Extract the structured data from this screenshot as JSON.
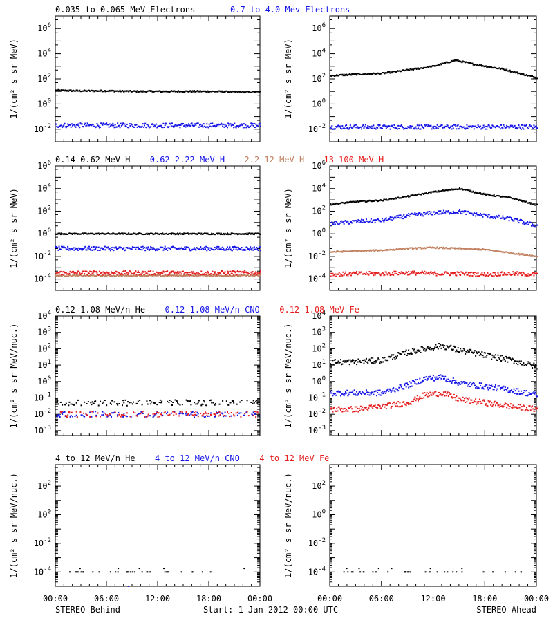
{
  "colors": {
    "black": "#000000",
    "blue": "#1414e6",
    "tan": "#c08060",
    "red": "#e41e1e"
  },
  "rows": [
    {
      "titles": [
        {
          "text": "0.035 to 0.065 MeV Electrons",
          "color": "black"
        },
        {
          "text": "0.7 to 4.0 Mev Electrons",
          "color": "blue"
        }
      ],
      "ylabel": "1/(cm² s sr MeV)",
      "yticks": [
        {
          "pos": 6,
          "base": "10",
          "exp": "6"
        },
        {
          "pos": 4,
          "base": "10",
          "exp": "4"
        },
        {
          "pos": 2,
          "base": "10",
          "exp": "2"
        },
        {
          "pos": 0,
          "base": "10",
          "exp": "0"
        },
        {
          "pos": -2,
          "base": "10",
          "exp": "-2"
        }
      ]
    },
    {
      "titles": [
        {
          "text": "0.14-0.62 MeV H",
          "color": "black"
        },
        {
          "text": "0.62-2.22 MeV H",
          "color": "blue"
        },
        {
          "text": "2.2-12 MeV H",
          "color": "tan"
        },
        {
          "text": "13-100 MeV H",
          "color": "red"
        }
      ],
      "ylabel": "1/(cm² s sr MeV)",
      "yticks": [
        {
          "pos": 6,
          "base": "10",
          "exp": "6"
        },
        {
          "pos": 4,
          "base": "10",
          "exp": "4"
        },
        {
          "pos": 2,
          "base": "10",
          "exp": "2"
        },
        {
          "pos": 0,
          "base": "10",
          "exp": "0"
        },
        {
          "pos": -2,
          "base": "10",
          "exp": "-2"
        },
        {
          "pos": -4,
          "base": "10",
          "exp": "-4"
        }
      ]
    },
    {
      "titles": [
        {
          "text": "0.12-1.08 MeV/n He",
          "color": "black"
        },
        {
          "text": "0.12-1.08 MeV/n CNO",
          "color": "blue"
        },
        {
          "text": "0.12-1.08 MeV Fe",
          "color": "red"
        }
      ],
      "ylabel": "1/(cm² s sr MeV/nuc.)",
      "yticks": [
        {
          "pos": 4,
          "base": "10",
          "exp": "4"
        },
        {
          "pos": 3,
          "base": "10",
          "exp": "3"
        },
        {
          "pos": 2,
          "base": "10",
          "exp": "2"
        },
        {
          "pos": 1,
          "base": "10",
          "exp": "1"
        },
        {
          "pos": 0,
          "base": "10",
          "exp": "0"
        },
        {
          "pos": -1,
          "base": "10",
          "exp": "-1"
        },
        {
          "pos": -2,
          "base": "10",
          "exp": "-2"
        },
        {
          "pos": -3,
          "base": "10",
          "exp": "-3"
        }
      ]
    },
    {
      "titles": [
        {
          "text": "4 to 12 MeV/n He",
          "color": "black"
        },
        {
          "text": "4 to 12 MeV/n CNO",
          "color": "blue"
        },
        {
          "text": "4 to 12 MeV Fe",
          "color": "red"
        }
      ],
      "ylabel": "1/(cm² s sr MeV/nuc.)",
      "yticks": [
        {
          "pos": 2,
          "base": "10",
          "exp": "2"
        },
        {
          "pos": 0,
          "base": "10",
          "exp": "0"
        },
        {
          "pos": -2,
          "base": "10",
          "exp": "-2"
        },
        {
          "pos": -4,
          "base": "10",
          "exp": "-4"
        }
      ]
    }
  ],
  "xticks": [
    "00:00",
    "06:00",
    "12:00",
    "18:00",
    "00:00"
  ],
  "footer": {
    "left": "STEREO Behind",
    "center": "Start:  1-Jan-2012 00:00 UTC",
    "right": "STEREO Ahead"
  },
  "chart_data": [
    {
      "type": "scatter",
      "panel": "electrons-behind",
      "ylog": true,
      "x_hours": [
        0,
        24
      ],
      "series": [
        {
          "name": "0.035 to 0.065 MeV Electrons",
          "color": "black",
          "x": [
            0,
            3,
            6,
            9,
            12,
            15,
            18,
            21,
            24
          ],
          "y": [
            12,
            11,
            11,
            10,
            10,
            10,
            10,
            9,
            9
          ]
        },
        {
          "name": "0.7 to 4.0 Mev Electrons",
          "color": "blue",
          "x": [
            0,
            3,
            6,
            9,
            12,
            15,
            18,
            21,
            24
          ],
          "y": [
            0.02,
            0.02,
            0.02,
            0.02,
            0.02,
            0.02,
            0.02,
            0.02,
            0.02
          ]
        }
      ]
    },
    {
      "type": "scatter",
      "panel": "electrons-ahead",
      "ylog": true,
      "x_hours": [
        0,
        24
      ],
      "series": [
        {
          "name": "0.035 to 0.065 MeV Electrons",
          "color": "black",
          "x": [
            0,
            3,
            6,
            9,
            12,
            14.5,
            17,
            20,
            24
          ],
          "y": [
            180,
            230,
            270,
            500,
            1000,
            3000,
            1300,
            600,
            120
          ]
        },
        {
          "name": "0.7 to 4.0 Mev Electrons",
          "color": "blue",
          "x": [
            0,
            3,
            6,
            9,
            12,
            15,
            18,
            21,
            24
          ],
          "y": [
            0.015,
            0.015,
            0.015,
            0.015,
            0.015,
            0.015,
            0.015,
            0.015,
            0.015
          ]
        }
      ]
    },
    {
      "type": "scatter",
      "panel": "protons-behind",
      "ylog": true,
      "x_hours": [
        0,
        24
      ],
      "series": [
        {
          "name": "0.14-0.62 MeV H",
          "color": "black",
          "x": [
            0,
            6,
            12,
            18,
            24
          ],
          "y": [
            1,
            1,
            1,
            1,
            1
          ]
        },
        {
          "name": "0.62-2.22 MeV H",
          "color": "blue",
          "x": [
            0,
            6,
            12,
            18,
            24
          ],
          "y": [
            0.05,
            0.05,
            0.05,
            0.05,
            0.05
          ]
        },
        {
          "name": "2.2-12 MeV H",
          "color": "tan",
          "x": [
            0,
            6,
            12,
            18,
            24
          ],
          "y": [
            0.0002,
            0.0002,
            0.0002,
            0.0002,
            0.0002
          ]
        },
        {
          "name": "13-100 MeV H",
          "color": "red",
          "x": [
            0,
            6,
            12,
            18,
            24
          ],
          "y": [
            0.00035,
            0.00035,
            0.00035,
            0.00035,
            0.00035
          ]
        }
      ]
    },
    {
      "type": "scatter",
      "panel": "protons-ahead",
      "ylog": true,
      "x_hours": [
        0,
        24
      ],
      "series": [
        {
          "name": "0.14-0.62 MeV H",
          "color": "black",
          "x": [
            0,
            3,
            6,
            9,
            12,
            15,
            18,
            21,
            24
          ],
          "y": [
            400,
            700,
            900,
            2000,
            5000,
            10000,
            3000,
            1500,
            350
          ]
        },
        {
          "name": "0.62-2.22 MeV H",
          "color": "blue",
          "x": [
            0,
            3,
            6,
            9,
            12,
            15,
            18,
            21,
            24
          ],
          "y": [
            8,
            12,
            15,
            40,
            70,
            90,
            40,
            20,
            5
          ]
        },
        {
          "name": "2.2-12 MeV H",
          "color": "tan",
          "x": [
            0,
            3,
            6,
            9,
            12,
            15,
            18,
            21,
            24
          ],
          "y": [
            0.025,
            0.03,
            0.035,
            0.05,
            0.06,
            0.05,
            0.04,
            0.02,
            0.01
          ]
        },
        {
          "name": "13-100 MeV H",
          "color": "red",
          "x": [
            0,
            3,
            6,
            9,
            12,
            15,
            18,
            21,
            24
          ],
          "y": [
            0.00025,
            0.0003,
            0.0003,
            0.00035,
            0.0003,
            0.0003,
            0.00025,
            0.0003,
            0.00025
          ]
        }
      ]
    },
    {
      "type": "scatter",
      "panel": "heavy-low-behind",
      "ylog": true,
      "x_hours": [
        0,
        24
      ],
      "series": [
        {
          "name": "0.12-1.08 MeV/n He",
          "color": "black",
          "x": [
            0,
            6,
            12,
            18,
            24
          ],
          "y": [
            0.05,
            0.05,
            0.05,
            0.05,
            0.05
          ]
        },
        {
          "name": "0.12-1.08 MeV/n CNO",
          "color": "blue",
          "x": [
            0,
            6,
            12,
            18,
            24
          ],
          "y": [
            0.01,
            0.01,
            0.01,
            0.01,
            0.01
          ]
        },
        {
          "name": "0.12-1.08 MeV Fe",
          "color": "red",
          "x": [
            0,
            6,
            12,
            18,
            24
          ],
          "y": [
            0.01,
            0.01,
            0.01,
            0.01,
            0.01
          ]
        }
      ]
    },
    {
      "type": "scatter",
      "panel": "heavy-low-ahead",
      "ylog": true,
      "x_hours": [
        0,
        24
      ],
      "series": [
        {
          "name": "0.12-1.08 MeV/n He",
          "color": "black",
          "x": [
            0,
            3,
            6,
            9,
            11,
            13,
            15,
            18,
            21,
            24
          ],
          "y": [
            15,
            16,
            20,
            60,
            100,
            150,
            80,
            40,
            20,
            8
          ]
        },
        {
          "name": "0.12-1.08 MeV/n CNO",
          "color": "blue",
          "x": [
            0,
            3,
            6,
            9,
            11,
            13,
            15,
            18,
            21,
            24
          ],
          "y": [
            0.2,
            0.2,
            0.2,
            0.6,
            1.5,
            1.8,
            0.8,
            0.5,
            0.3,
            0.15
          ]
        },
        {
          "name": "0.12-1.08 MeV Fe",
          "color": "red",
          "x": [
            0,
            3,
            6,
            9,
            11,
            13,
            15,
            18,
            21,
            24
          ],
          "y": [
            0.02,
            0.02,
            0.03,
            0.05,
            0.15,
            0.2,
            0.08,
            0.05,
            0.03,
            0.02
          ]
        }
      ]
    },
    {
      "type": "scatter",
      "panel": "heavy-high-behind",
      "ylog": true,
      "x_hours": [
        0,
        24
      ],
      "series": [
        {
          "name": "4 to 12 MeV/n He",
          "color": "black",
          "x": [
            0,
            6,
            12,
            18,
            24
          ],
          "y": [
            0.0001,
            0.0001,
            0.0001,
            0.0001,
            0.0001
          ]
        },
        {
          "name": "4 to 12 MeV/n CNO",
          "color": "blue",
          "x": [
            8.5
          ],
          "y": [
            1e-05
          ]
        }
      ]
    },
    {
      "type": "scatter",
      "panel": "heavy-high-ahead",
      "ylog": true,
      "x_hours": [
        0,
        24
      ],
      "series": [
        {
          "name": "4 to 12 MeV/n He",
          "color": "black",
          "x": [
            0,
            6,
            12,
            18,
            24
          ],
          "y": [
            0.0001,
            0.0001,
            0.0001,
            0.0001,
            0.0001
          ]
        }
      ]
    }
  ]
}
